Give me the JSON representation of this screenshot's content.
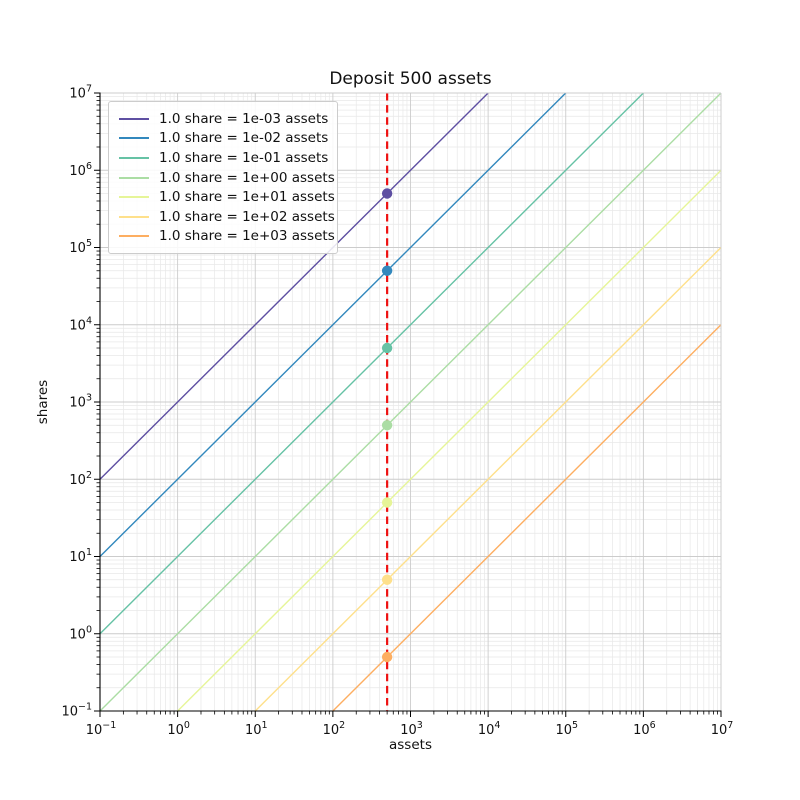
{
  "chart_data": {
    "type": "line",
    "title": "Deposit 500 assets",
    "xlabel": "assets",
    "ylabel": "shares",
    "xscale": "log",
    "yscale": "log",
    "xlim": [
      0.1,
      10000000
    ],
    "ylim": [
      0.1,
      10000000
    ],
    "x_tick_exponents": [
      -1,
      0,
      1,
      2,
      3,
      4,
      5,
      6,
      7
    ],
    "y_tick_exponents": [
      -1,
      0,
      1,
      2,
      3,
      4,
      5,
      6,
      7
    ],
    "grid": {
      "which": "both",
      "major_color": "#cccccc",
      "minor_color": "#e8e8e8"
    },
    "spines": {
      "left_bottom_color": "#000000",
      "top_right_color": "#cccccc"
    },
    "legend_position": "upper-left",
    "deposit_assets": 500,
    "series": [
      {
        "label": "1.0 share = 1e-03 assets",
        "assets_per_share": 0.001,
        "color": "#5e4fa2",
        "marker": {
          "assets": 500,
          "shares": 500000
        }
      },
      {
        "label": "1.0 share = 1e-02 assets",
        "assets_per_share": 0.01,
        "color": "#3288bd",
        "marker": {
          "assets": 500,
          "shares": 50000
        }
      },
      {
        "label": "1.0 share = 1e-01 assets",
        "assets_per_share": 0.1,
        "color": "#66c2a5",
        "marker": {
          "assets": 500,
          "shares": 5000
        }
      },
      {
        "label": "1.0 share = 1e+00 assets",
        "assets_per_share": 1,
        "color": "#abdda4",
        "marker": {
          "assets": 500,
          "shares": 500
        }
      },
      {
        "label": "1.0 share = 1e+01 assets",
        "assets_per_share": 10,
        "color": "#e6f598",
        "marker": {
          "assets": 500,
          "shares": 50
        }
      },
      {
        "label": "1.0 share = 1e+02 assets",
        "assets_per_share": 100,
        "color": "#fee08b",
        "marker": {
          "assets": 500,
          "shares": 5
        }
      },
      {
        "label": "1.0 share = 1e+03 assets",
        "assets_per_share": 1000,
        "color": "#fdae61",
        "marker": {
          "assets": 500,
          "shares": 0.5
        }
      }
    ],
    "vline": {
      "assets": 500,
      "color": "#ee1111",
      "style": "dashed",
      "width": 2.2
    }
  }
}
